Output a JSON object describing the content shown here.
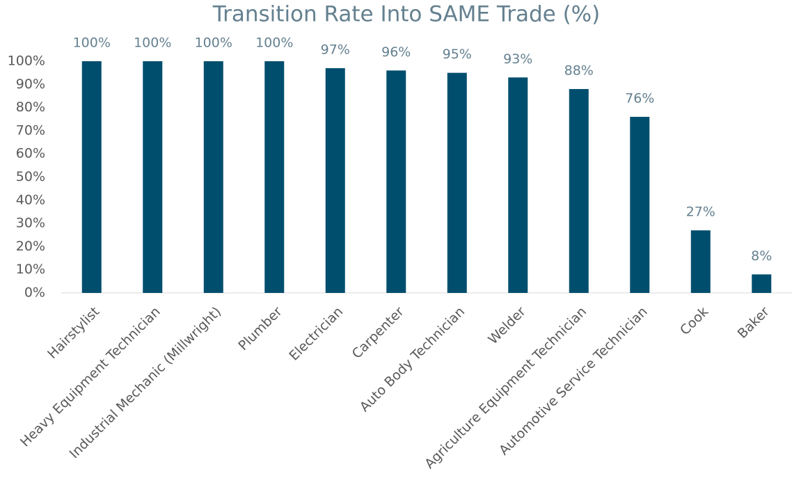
{
  "chart_data": {
    "type": "bar",
    "title": "Transition Rate Into SAME Trade (%)",
    "categories": [
      "Hairstylist",
      "Heavy Equipment Technician",
      "Industrial Mechanic (Millwright)",
      "Plumber",
      "Electrician",
      "Carpenter",
      "Auto Body Technician",
      "Welder",
      "Agriculture Equipment Technician",
      "Automotive Service Technician",
      "Cook",
      "Baker"
    ],
    "values": [
      100,
      100,
      100,
      100,
      97,
      96,
      95,
      93,
      88,
      76,
      27,
      8
    ],
    "value_labels": [
      "100%",
      "100%",
      "100%",
      "100%",
      "97%",
      "96%",
      "95%",
      "93%",
      "88%",
      "76%",
      "27%",
      "8%"
    ],
    "color": "#004e6e",
    "ylim": [
      0,
      100
    ],
    "yticks": [
      {
        "value": 0,
        "label": "0%"
      },
      {
        "value": 10,
        "label": "10%"
      },
      {
        "value": 20,
        "label": "20%"
      },
      {
        "value": 30,
        "label": "30%"
      },
      {
        "value": 40,
        "label": "40%"
      },
      {
        "value": 50,
        "label": "50%"
      },
      {
        "value": 60,
        "label": "60%"
      },
      {
        "value": 70,
        "label": "70%"
      },
      {
        "value": 80,
        "label": "80%"
      },
      {
        "value": 90,
        "label": "90%"
      },
      {
        "value": 100,
        "label": "100%"
      }
    ],
    "grid": false
  }
}
